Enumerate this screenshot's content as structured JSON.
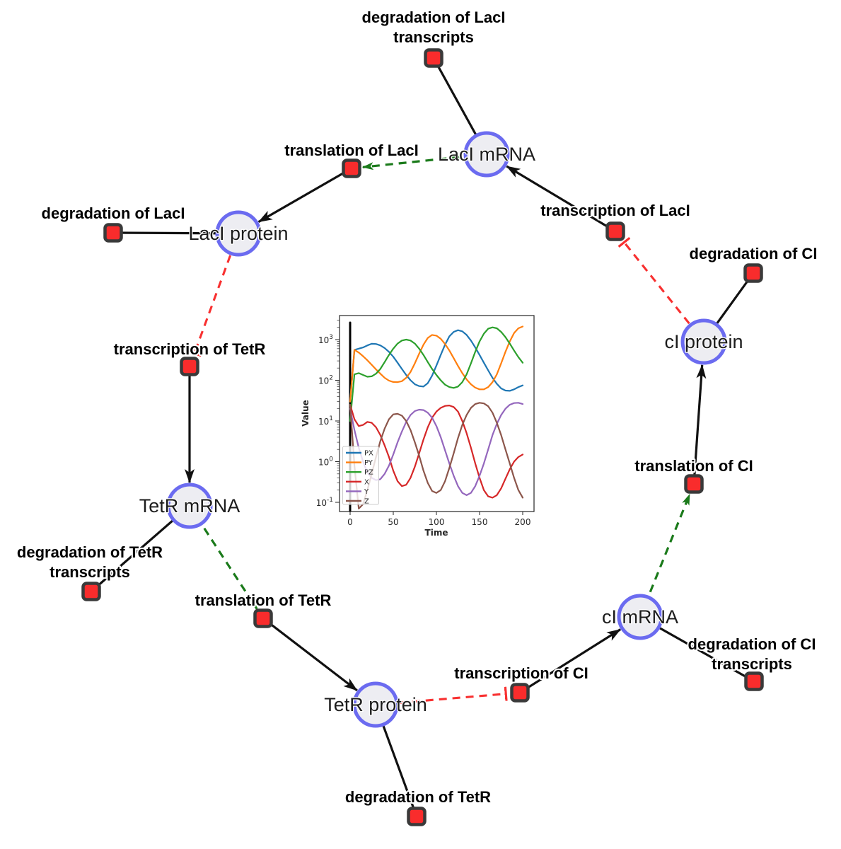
{
  "diagram": {
    "species": [
      {
        "id": "laci-mrna",
        "label": "LacI mRNA"
      },
      {
        "id": "laci-protein",
        "label": "LacI protein"
      },
      {
        "id": "tetr-mrna",
        "label": "TetR mRNA"
      },
      {
        "id": "tetr-protein",
        "label": "TetR protein"
      },
      {
        "id": "ci-mrna",
        "label": "cI mRNA"
      },
      {
        "id": "ci-protein",
        "label": "cI protein"
      }
    ],
    "reactions": [
      {
        "id": "deg-laci-transcripts",
        "lines": [
          "degradation of LacI",
          "transcripts"
        ]
      },
      {
        "id": "translation-laci",
        "label": "translation of LacI"
      },
      {
        "id": "transcription-laci",
        "label": "transcription of LacI"
      },
      {
        "id": "deg-laci",
        "label": "degradation of LacI"
      },
      {
        "id": "deg-ci",
        "label": "degradation of CI"
      },
      {
        "id": "transcription-tetr",
        "label": "transcription of TetR"
      },
      {
        "id": "deg-tetr-transcripts",
        "lines": [
          "degradation of TetR",
          "transcripts"
        ]
      },
      {
        "id": "translation-tetr",
        "label": "translation of TetR"
      },
      {
        "id": "deg-tetr",
        "label": "degradation of TetR"
      },
      {
        "id": "transcription-ci",
        "label": "transcription of CI"
      },
      {
        "id": "deg-ci-transcripts",
        "lines": [
          "degradation of CI",
          "transcripts"
        ]
      },
      {
        "id": "translation-ci",
        "label": "translation of CI"
      }
    ],
    "edges": [
      {
        "from": "LacI mRNA",
        "to": "degradation of LacI transcripts",
        "type": "reactant"
      },
      {
        "from": "LacI mRNA",
        "to": "translation of LacI",
        "type": "modifier"
      },
      {
        "from": "transcription of LacI",
        "to": "LacI mRNA",
        "type": "product"
      },
      {
        "from": "translation of LacI",
        "to": "LacI protein",
        "type": "product"
      },
      {
        "from": "LacI protein",
        "to": "degradation of LacI",
        "type": "reactant"
      },
      {
        "from": "LacI protein",
        "to": "transcription of TetR",
        "type": "inhibition"
      },
      {
        "from": "transcription of TetR",
        "to": "TetR mRNA",
        "type": "product"
      },
      {
        "from": "TetR mRNA",
        "to": "degradation of TetR transcripts",
        "type": "reactant"
      },
      {
        "from": "TetR mRNA",
        "to": "translation of TetR",
        "type": "modifier"
      },
      {
        "from": "translation of TetR",
        "to": "TetR protein",
        "type": "product"
      },
      {
        "from": "TetR protein",
        "to": "degradation of TetR",
        "type": "reactant"
      },
      {
        "from": "TetR protein",
        "to": "transcription of CI",
        "type": "inhibition"
      },
      {
        "from": "transcription of CI",
        "to": "cI mRNA",
        "type": "product"
      },
      {
        "from": "cI mRNA",
        "to": "degradation of CI transcripts",
        "type": "reactant"
      },
      {
        "from": "cI mRNA",
        "to": "translation of CI",
        "type": "modifier"
      },
      {
        "from": "translation of CI",
        "to": "cI protein",
        "type": "product"
      },
      {
        "from": "cI protein",
        "to": "degradation of CI",
        "type": "reactant"
      },
      {
        "from": "cI protein",
        "to": "transcription of LacI",
        "type": "inhibition"
      }
    ],
    "colors": {
      "species_fill": "#ededf2",
      "species_border": "#6b6bf0",
      "reaction_fill": "#f92c2c",
      "reaction_border": "#3a3a3a",
      "edge": "#111111",
      "activation": "#1a7a1a",
      "inhibition": "#f83030"
    }
  },
  "chart_data": {
    "type": "line",
    "title": "",
    "xlabel": "Time",
    "ylabel": "Value",
    "x_ticks": [
      0,
      50,
      100,
      150,
      200
    ],
    "ytick_base": "10",
    "y_tick_exponents": [
      3,
      2,
      1,
      0,
      -1
    ],
    "xlim": [
      -12,
      213
    ],
    "ylog_lim": [
      -1.23,
      3.59
    ],
    "yscale": "log",
    "legend_position": "lower left",
    "annotation": "vertical black line at t=0",
    "x": [
      0,
      5,
      10,
      15,
      20,
      25,
      30,
      35,
      40,
      45,
      50,
      55,
      60,
      65,
      70,
      75,
      80,
      85,
      90,
      95,
      100,
      105,
      110,
      115,
      120,
      125,
      130,
      135,
      140,
      145,
      150,
      155,
      160,
      165,
      170,
      175,
      180,
      185,
      190,
      195,
      200
    ],
    "series": [
      {
        "name": "PX",
        "color": "#1f77b4",
        "values": [
          30,
          560,
          600,
          640,
          720,
          790,
          780,
          720,
          620,
          500,
          380,
          270,
          190,
          135,
          100,
          80,
          72,
          70,
          85,
          130,
          230,
          420,
          750,
          1200,
          1550,
          1700,
          1600,
          1300,
          950,
          640,
          420,
          270,
          175,
          115,
          82,
          63,
          56,
          55,
          60,
          68,
          75
        ]
      },
      {
        "name": "PY",
        "color": "#ff7f0e",
        "values": [
          30,
          560,
          480,
          390,
          310,
          240,
          185,
          145,
          115,
          98,
          91,
          90,
          95,
          115,
          160,
          260,
          450,
          750,
          1100,
          1300,
          1250,
          1050,
          780,
          540,
          350,
          225,
          150,
          105,
          80,
          66,
          60,
          60,
          68,
          90,
          140,
          260,
          500,
          900,
          1450,
          1900,
          2100
        ]
      },
      {
        "name": "PZ",
        "color": "#2ca02c",
        "values": [
          10,
          140,
          150,
          135,
          122,
          125,
          145,
          190,
          280,
          420,
          600,
          800,
          950,
          1000,
          950,
          800,
          600,
          420,
          280,
          190,
          135,
          100,
          78,
          68,
          65,
          70,
          90,
          140,
          260,
          500,
          900,
          1400,
          1850,
          2000,
          1900,
          1550,
          1150,
          800,
          540,
          370,
          270
        ]
      },
      {
        "name": "X",
        "color": "#d62728",
        "values": [
          25,
          11,
          7.5,
          8,
          9.5,
          9,
          7,
          4.5,
          2.5,
          1.3,
          0.6,
          0.33,
          0.25,
          0.27,
          0.4,
          0.75,
          1.6,
          3.5,
          7,
          12,
          17,
          21,
          23.5,
          24,
          22,
          17,
          10,
          5,
          2.2,
          0.9,
          0.4,
          0.2,
          0.14,
          0.13,
          0.15,
          0.22,
          0.38,
          0.65,
          1,
          1.3,
          1.5
        ]
      },
      {
        "name": "Y",
        "color": "#9467bd",
        "values": [
          20,
          6,
          2.2,
          1,
          0.55,
          0.4,
          0.35,
          0.37,
          0.5,
          0.8,
          1.5,
          3,
          5.5,
          9.5,
          14,
          17.5,
          19,
          18.5,
          16,
          12,
          7.5,
          4,
          1.9,
          0.9,
          0.45,
          0.25,
          0.17,
          0.15,
          0.17,
          0.25,
          0.45,
          0.9,
          2,
          4.5,
          8.5,
          14,
          20,
          25,
          27.5,
          28,
          26
        ]
      },
      {
        "name": "Z",
        "color": "#8c564b",
        "values": [
          25,
          0.8,
          0.07,
          0.09,
          0.2,
          0.5,
          1.3,
          3.2,
          6.5,
          11,
          14.5,
          15,
          13.5,
          10,
          6,
          3,
          1.4,
          0.6,
          0.3,
          0.19,
          0.17,
          0.2,
          0.33,
          0.7,
          1.6,
          3.8,
          8,
          14,
          21,
          26,
          28,
          27,
          23,
          16,
          9,
          4.5,
          2,
          0.9,
          0.4,
          0.2,
          0.13
        ]
      }
    ]
  }
}
